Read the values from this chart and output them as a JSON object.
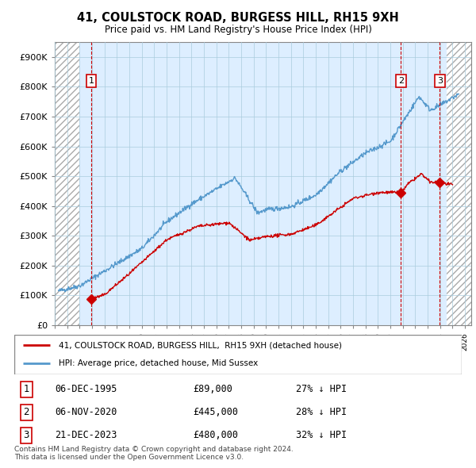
{
  "title": "41, COULSTOCK ROAD, BURGESS HILL, RH15 9XH",
  "subtitle": "Price paid vs. HM Land Registry's House Price Index (HPI)",
  "legend_label_red": "41, COULSTOCK ROAD, BURGESS HILL,  RH15 9XH (detached house)",
  "legend_label_blue": "HPI: Average price, detached house, Mid Sussex",
  "transactions": [
    {
      "num": 1,
      "date": "1995-12-06",
      "label": "06-DEC-1995",
      "price": 89000,
      "hpi_pct": "27% ↓ HPI",
      "x_year": 1995.93
    },
    {
      "num": 2,
      "date": "2020-11-06",
      "label": "06-NOV-2020",
      "price": 445000,
      "hpi_pct": "28% ↓ HPI",
      "x_year": 2020.85
    },
    {
      "num": 3,
      "date": "2023-12-21",
      "label": "21-DEC-2023",
      "price": 480000,
      "hpi_pct": "32% ↓ HPI",
      "x_year": 2023.97
    }
  ],
  "ylabel_ticks": [
    "£0",
    "£100K",
    "£200K",
    "£300K",
    "£400K",
    "£500K",
    "£600K",
    "£700K",
    "£800K",
    "£900K"
  ],
  "ytick_values": [
    0,
    100000,
    200000,
    300000,
    400000,
    500000,
    600000,
    700000,
    800000,
    900000
  ],
  "xlim": [
    1993.0,
    2026.5
  ],
  "ylim": [
    0,
    950000
  ],
  "hpi_start_year": 1993.3,
  "hpi_end_year": 2025.5,
  "prop_start_year": 1995.93,
  "prop_end_year": 2025.0,
  "hatch_left_end": 1995.0,
  "hatch_right_start": 2024.5,
  "blue_fill_color": "#ddeeff",
  "red_line_color": "#cc0000",
  "blue_line_color": "#5599cc",
  "dashed_red_color": "#cc0000",
  "footer_text": "Contains HM Land Registry data © Crown copyright and database right 2024.\nThis data is licensed under the Open Government Licence v3.0.",
  "xtick_years": [
    1993,
    1994,
    1995,
    1996,
    1997,
    1998,
    1999,
    2000,
    2001,
    2002,
    2003,
    2004,
    2005,
    2006,
    2007,
    2008,
    2009,
    2010,
    2011,
    2012,
    2013,
    2014,
    2015,
    2016,
    2017,
    2018,
    2019,
    2020,
    2021,
    2022,
    2023,
    2024,
    2025,
    2026
  ]
}
